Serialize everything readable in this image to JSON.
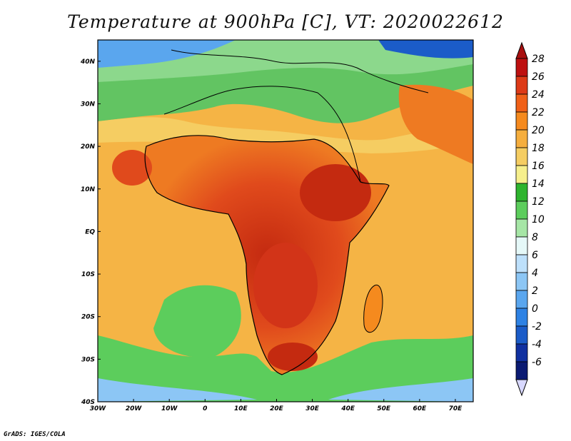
{
  "title": "Temperature at 900hPa [C], VT: 2020022612",
  "footer": "GrADS: IGES/COLA",
  "map": {
    "lon_ticks": [
      "30W",
      "20W",
      "10W",
      "0",
      "10E",
      "20E",
      "30E",
      "40E",
      "50E",
      "60E",
      "70E"
    ],
    "lat_ticks": [
      "40N",
      "30N",
      "20N",
      "10N",
      "EQ",
      "10S",
      "20S",
      "30S",
      "40S"
    ],
    "lon_range": [
      -30,
      75
    ],
    "lat_range": [
      -40,
      45
    ],
    "colors": {
      "ocean_cool": "#4aa24a",
      "ocean_warm": "#f5b445",
      "land_hot": "#d8401c",
      "land_very_hot": "#c42a10",
      "cold_sea": "#3c7de0"
    }
  },
  "colorbar": {
    "labels": [
      "28",
      "26",
      "24",
      "22",
      "20",
      "18",
      "16",
      "14",
      "12",
      "10",
      "8",
      "6",
      "4",
      "2",
      "0",
      "-2",
      "-4",
      "-6"
    ],
    "colors": [
      "#bd1010",
      "#dd3a17",
      "#f06018",
      "#f58a1e",
      "#f5ae3e",
      "#f5cd62",
      "#f6ef8c",
      "#2eb42e",
      "#5ccd5c",
      "#a6e6a6",
      "#e5f8f8",
      "#bde0fb",
      "#8cc6f5",
      "#5aa6ee",
      "#2e82e4",
      "#1b5cc8",
      "#1030a0",
      "#0a1a72"
    ],
    "top_arrow_color": "#a81010",
    "bottom_arrow_color": "#d8d8ff"
  }
}
